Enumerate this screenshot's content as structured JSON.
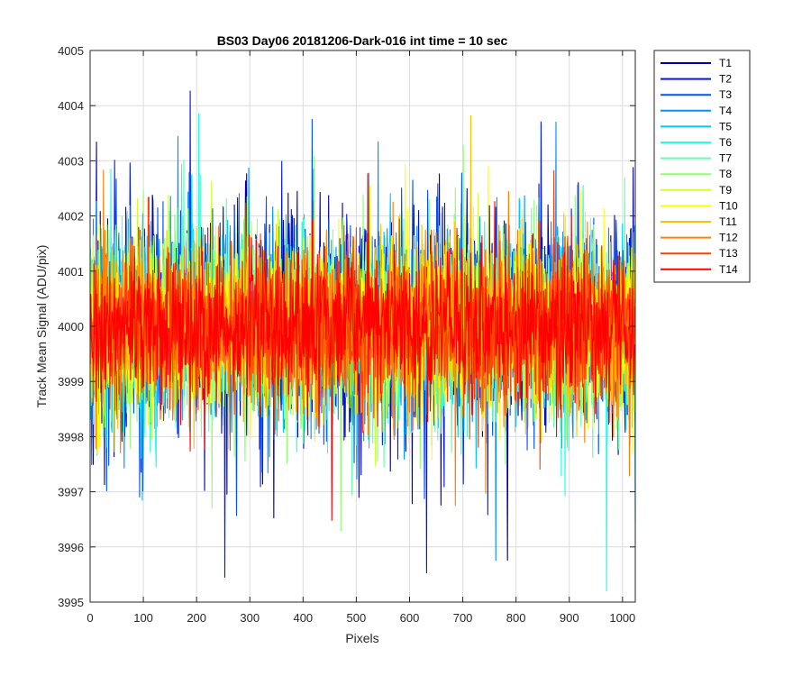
{
  "chart_data": {
    "type": "line",
    "title": "BS03 Day06 20181206-Dark-016 int time = 10 sec",
    "xlabel": "Pixels",
    "ylabel": "Track Mean Signal (ADU/pix)",
    "xlim": [
      0,
      1024
    ],
    "ylim": [
      3995,
      4005
    ],
    "x_ticks": [
      0,
      100,
      200,
      300,
      400,
      500,
      600,
      700,
      800,
      900,
      1000
    ],
    "y_ticks": [
      3995,
      3996,
      3997,
      3998,
      3999,
      4000,
      4001,
      4002,
      4003,
      4004,
      4005
    ],
    "grid": true,
    "legend_position": "outside-top-right",
    "series": [
      {
        "name": "T1",
        "color": "#0000a8",
        "center": 4000,
        "spread": 1.3
      },
      {
        "name": "T2",
        "color": "#0018e0",
        "center": 4000,
        "spread": 1.25
      },
      {
        "name": "T3",
        "color": "#0050ff",
        "center": 4000,
        "spread": 1.2
      },
      {
        "name": "T4",
        "color": "#0090ff",
        "center": 4000,
        "spread": 1.15
      },
      {
        "name": "T5",
        "color": "#00c8ff",
        "center": 4000,
        "spread": 1.1
      },
      {
        "name": "T6",
        "color": "#20ffe8",
        "center": 4000,
        "spread": 1.1
      },
      {
        "name": "T7",
        "color": "#60ffb0",
        "center": 4000,
        "spread": 1.1
      },
      {
        "name": "T8",
        "color": "#90ff70",
        "center": 4000,
        "spread": 1.1
      },
      {
        "name": "T9",
        "color": "#d0ff30",
        "center": 4000,
        "spread": 1.05
      },
      {
        "name": "T10",
        "color": "#ffff00",
        "center": 4000,
        "spread": 1.05
      },
      {
        "name": "T11",
        "color": "#ffc000",
        "center": 4000,
        "spread": 1.0
      },
      {
        "name": "T12",
        "color": "#ff8000",
        "center": 4000,
        "spread": 1.0
      },
      {
        "name": "T13",
        "color": "#ff4000",
        "center": 4000,
        "spread": 0.95
      },
      {
        "name": "T14",
        "color": "#ff0000",
        "center": 4000,
        "spread": 0.95
      }
    ]
  }
}
